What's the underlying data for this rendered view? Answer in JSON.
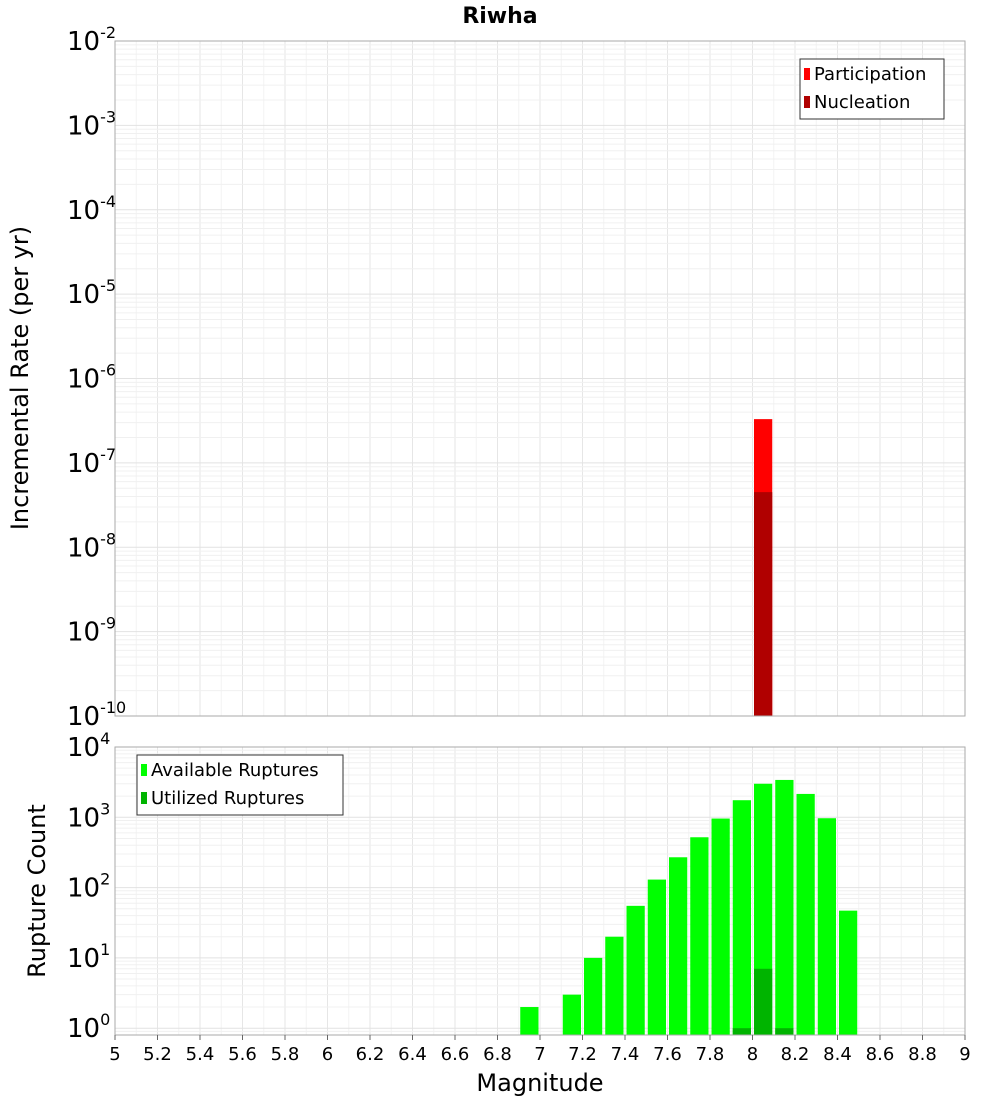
{
  "title": "Riwha",
  "chart_data": [
    {
      "type": "bar",
      "yscale": "log",
      "ylabel": "Incremental Rate (per yr)",
      "xlim": [
        5,
        9
      ],
      "ylim": [
        1e-10,
        0.01
      ],
      "grid": true,
      "legend_position": "top-right",
      "y_ticks": [
        {
          "base": "10",
          "exp": "-2",
          "value": 0.01
        },
        {
          "base": "10",
          "exp": "-3",
          "value": 0.001
        },
        {
          "base": "10",
          "exp": "-4",
          "value": 0.0001
        },
        {
          "base": "10",
          "exp": "-5",
          "value": 1e-05
        },
        {
          "base": "10",
          "exp": "-6",
          "value": 1e-06
        },
        {
          "base": "10",
          "exp": "-7",
          "value": 1e-07
        },
        {
          "base": "10",
          "exp": "-8",
          "value": 1e-08
        },
        {
          "base": "10",
          "exp": "-9",
          "value": 1e-09
        },
        {
          "base": "10",
          "exp": "-10",
          "value": 1e-10
        }
      ],
      "series": [
        {
          "name": "Participation",
          "color": "#ff0000",
          "x": [
            8.05
          ],
          "values": [
            3.3e-07
          ]
        },
        {
          "name": "Nucleation",
          "color": "#b00000",
          "x": [
            8.05
          ],
          "values": [
            4.5e-08
          ]
        }
      ]
    },
    {
      "type": "bar",
      "yscale": "log",
      "xlabel": "Magnitude",
      "ylabel": "Rupture Count",
      "xlim": [
        5,
        9
      ],
      "ylim": [
        0.8,
        10000
      ],
      "grid": true,
      "legend_position": "top-left",
      "x_ticks": [
        "5",
        "5.2",
        "5.4",
        "5.6",
        "5.8",
        "6",
        "6.2",
        "6.4",
        "6.6",
        "6.8",
        "7",
        "7.2",
        "7.4",
        "7.6",
        "7.8",
        "8",
        "8.2",
        "8.4",
        "8.6",
        "8.8",
        "9"
      ],
      "y_ticks": [
        {
          "base": "10",
          "exp": "4",
          "value": 10000
        },
        {
          "base": "10",
          "exp": "3",
          "value": 1000
        },
        {
          "base": "10",
          "exp": "2",
          "value": 100
        },
        {
          "base": "10",
          "exp": "1",
          "value": 10
        },
        {
          "base": "10",
          "exp": "0",
          "value": 1
        }
      ],
      "series": [
        {
          "name": "Available Ruptures",
          "color": "#00ff00",
          "x": [
            6.95,
            7.15,
            7.25,
            7.35,
            7.45,
            7.55,
            7.65,
            7.75,
            7.85,
            7.95,
            8.05,
            8.15,
            8.25,
            8.35,
            8.45
          ],
          "values": [
            2,
            3,
            10,
            20,
            55,
            130,
            270,
            520,
            960,
            1750,
            3000,
            3400,
            2150,
            970,
            47
          ]
        },
        {
          "name": "Utilized Ruptures",
          "color": "#00b400",
          "x": [
            7.95,
            8.05,
            8.15
          ],
          "values": [
            1,
            7,
            1
          ]
        }
      ]
    }
  ]
}
